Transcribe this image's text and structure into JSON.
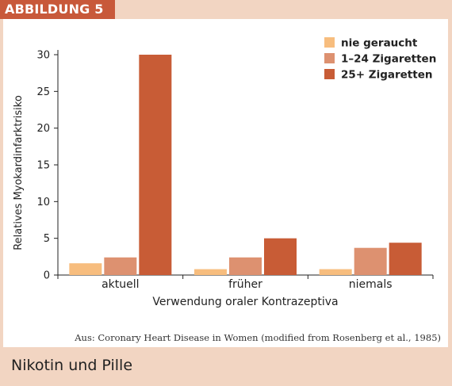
{
  "figure_label": "ABBILDUNG 5",
  "source": "Aus: Coronary Heart Disease in Women (modified from Rosenberg et al., 1985)",
  "caption": "Nikotin und Pille",
  "colors": {
    "header": "#c8593a",
    "background": "#f2d5c2",
    "panel": "#ffffff"
  },
  "chart_data": {
    "type": "bar",
    "title": "",
    "xlabel": "Verwendung oraler Kontrazeptiva",
    "ylabel": "Relatives Myokardinfarktrisiko",
    "categories": [
      "aktuell",
      "früher",
      "niemals"
    ],
    "series": [
      {
        "name": "nie geraucht",
        "color": "#f7bd7e",
        "values": [
          1.6,
          0.8,
          0.8
        ]
      },
      {
        "name": "1–24 Zigaretten",
        "color": "#dd9170",
        "values": [
          2.4,
          2.4,
          3.7
        ]
      },
      {
        "name": "25+ Zigaretten",
        "color": "#c85c36",
        "values": [
          30,
          5,
          4.4
        ]
      }
    ],
    "ylim": [
      0,
      30
    ],
    "yticks": [
      0,
      5,
      10,
      15,
      20,
      25,
      30
    ],
    "grid": false,
    "legend_position": "top-right"
  }
}
